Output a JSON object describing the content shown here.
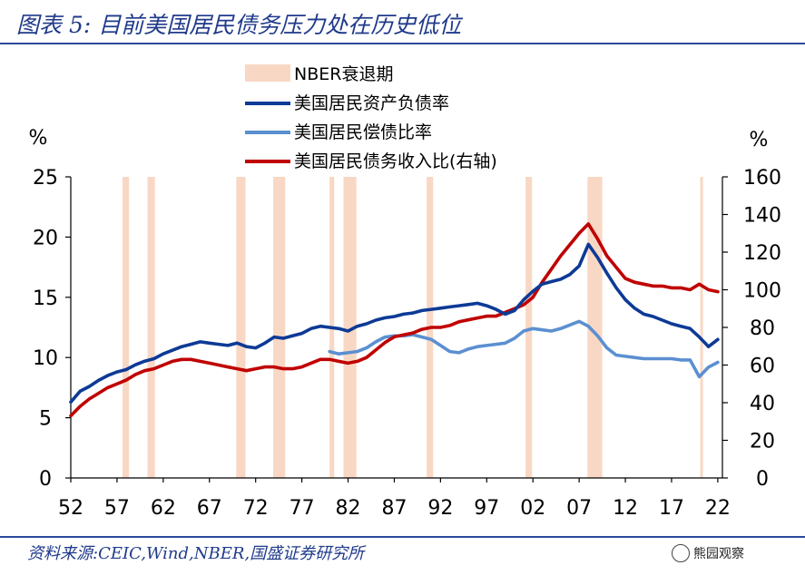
{
  "title": "图表 5:  目前美国居民债务压力处在历史低位",
  "source": "资料来源:CEIC,Wind,NBER,国盛证券研究所",
  "watermark": "熊园观察",
  "colors": {
    "recession": "#f8d8c4",
    "debt_asset": "#0d3a96",
    "debt_service": "#5b8fd1",
    "debt_income": "#c00000",
    "title": "#1f3a8a"
  },
  "chart_data": {
    "type": "line",
    "left_axis_unit": "%",
    "right_axis_unit": "%",
    "ylim_left": [
      0,
      25
    ],
    "ylim_right": [
      0,
      160
    ],
    "yticks_left": [
      "0",
      "5",
      "10",
      "15",
      "20",
      "25"
    ],
    "yticks_right": [
      "0",
      "20",
      "40",
      "60",
      "80",
      "100",
      "120",
      "140",
      "160"
    ],
    "xlim": [
      1952,
      2022.5
    ],
    "xticks": [
      "52",
      "57",
      "62",
      "67",
      "72",
      "77",
      "82",
      "87",
      "92",
      "97",
      "02",
      "07",
      "12",
      "17",
      "22"
    ],
    "legend": [
      "NBER衰退期",
      "美国居民资产负债率",
      "美国居民偿债比率",
      "美国居民债务收入比(右轴)"
    ],
    "recessions": [
      [
        1957.6,
        1958.3
      ],
      [
        1960.3,
        1961.1
      ],
      [
        1969.9,
        1970.9
      ],
      [
        1973.9,
        1975.2
      ],
      [
        1980.0,
        1980.5
      ],
      [
        1981.5,
        1982.9
      ],
      [
        1990.5,
        1991.2
      ],
      [
        2001.2,
        2001.9
      ],
      [
        2007.9,
        2009.5
      ],
      [
        2020.1,
        2020.4
      ]
    ],
    "series": [
      {
        "name": "美国居民资产负债率",
        "axis": "left",
        "x": [
          1952,
          1953,
          1954,
          1955,
          1956,
          1957,
          1958,
          1959,
          1960,
          1961,
          1962,
          1963,
          1964,
          1965,
          1966,
          1967,
          1968,
          1969,
          1970,
          1971,
          1972,
          1973,
          1974,
          1975,
          1976,
          1977,
          1978,
          1979,
          1980,
          1981,
          1982,
          1983,
          1984,
          1985,
          1986,
          1987,
          1988,
          1989,
          1990,
          1991,
          1992,
          1993,
          1994,
          1995,
          1996,
          1997,
          1998,
          1999,
          2000,
          2001,
          2002,
          2003,
          2004,
          2005,
          2006,
          2007,
          2008,
          2009,
          2010,
          2011,
          2012,
          2013,
          2014,
          2015,
          2016,
          2017,
          2018,
          2019,
          2020,
          2021,
          2022
        ],
        "y": [
          6.3,
          7.2,
          7.6,
          8.1,
          8.5,
          8.8,
          9.0,
          9.4,
          9.7,
          9.9,
          10.3,
          10.6,
          10.9,
          11.1,
          11.3,
          11.2,
          11.1,
          11.0,
          11.2,
          10.9,
          10.8,
          11.2,
          11.7,
          11.6,
          11.8,
          12.0,
          12.4,
          12.6,
          12.5,
          12.4,
          12.2,
          12.6,
          12.8,
          13.1,
          13.3,
          13.4,
          13.6,
          13.7,
          13.9,
          14.0,
          14.1,
          14.2,
          14.3,
          14.4,
          14.5,
          14.3,
          14.0,
          13.6,
          13.9,
          14.8,
          15.5,
          16.1,
          16.3,
          16.5,
          16.9,
          17.6,
          19.4,
          18.3,
          17.0,
          15.8,
          14.8,
          14.1,
          13.6,
          13.4,
          13.1,
          12.8,
          12.6,
          12.4,
          11.7,
          10.9,
          11.5
        ]
      },
      {
        "name": "美国居民偿债比率",
        "axis": "left",
        "x": [
          1980,
          1981,
          1982,
          1983,
          1984,
          1985,
          1986,
          1987,
          1988,
          1989,
          1990,
          1991,
          1992,
          1993,
          1994,
          1995,
          1996,
          1997,
          1998,
          1999,
          2000,
          2001,
          2002,
          2003,
          2004,
          2005,
          2006,
          2007,
          2008,
          2009,
          2010,
          2011,
          2012,
          2013,
          2014,
          2015,
          2016,
          2017,
          2018,
          2019,
          2020,
          2021,
          2022
        ],
        "y": [
          10.5,
          10.3,
          10.4,
          10.5,
          10.8,
          11.3,
          11.7,
          11.8,
          11.8,
          11.9,
          11.7,
          11.5,
          11.0,
          10.5,
          10.4,
          10.7,
          10.9,
          11.0,
          11.1,
          11.2,
          11.6,
          12.2,
          12.4,
          12.3,
          12.2,
          12.4,
          12.7,
          13.0,
          12.6,
          11.8,
          10.8,
          10.2,
          10.1,
          10.0,
          9.9,
          9.9,
          9.9,
          9.9,
          9.8,
          9.8,
          8.4,
          9.2,
          9.6
        ]
      },
      {
        "name": "美国居民债务收入比(右轴)",
        "axis": "right",
        "x": [
          1952,
          1953,
          1954,
          1955,
          1956,
          1957,
          1958,
          1959,
          1960,
          1961,
          1962,
          1963,
          1964,
          1965,
          1966,
          1967,
          1968,
          1969,
          1970,
          1971,
          1972,
          1973,
          1974,
          1975,
          1976,
          1977,
          1978,
          1979,
          1980,
          1981,
          1982,
          1983,
          1984,
          1985,
          1986,
          1987,
          1988,
          1989,
          1990,
          1991,
          1992,
          1993,
          1994,
          1995,
          1996,
          1997,
          1998,
          1999,
          2000,
          2001,
          2002,
          2003,
          2004,
          2005,
          2006,
          2007,
          2008,
          2009,
          2010,
          2011,
          2012,
          2013,
          2014,
          2015,
          2016,
          2017,
          2018,
          2019,
          2020,
          2021,
          2022
        ],
        "y": [
          33,
          38,
          42,
          45,
          48,
          50,
          52,
          55,
          57,
          58,
          60,
          62,
          63,
          63,
          62,
          61,
          60,
          59,
          58,
          57,
          58,
          59,
          59,
          58,
          58,
          59,
          61,
          63,
          63,
          62,
          61,
          62,
          64,
          68,
          72,
          75,
          76,
          77,
          79,
          80,
          80,
          81,
          83,
          84,
          85,
          86,
          86,
          88,
          90,
          92,
          96,
          104,
          111,
          118,
          124,
          130,
          135,
          127,
          118,
          112,
          106,
          104,
          103,
          102,
          102,
          101,
          101,
          100,
          103,
          100,
          99
        ]
      }
    ]
  }
}
